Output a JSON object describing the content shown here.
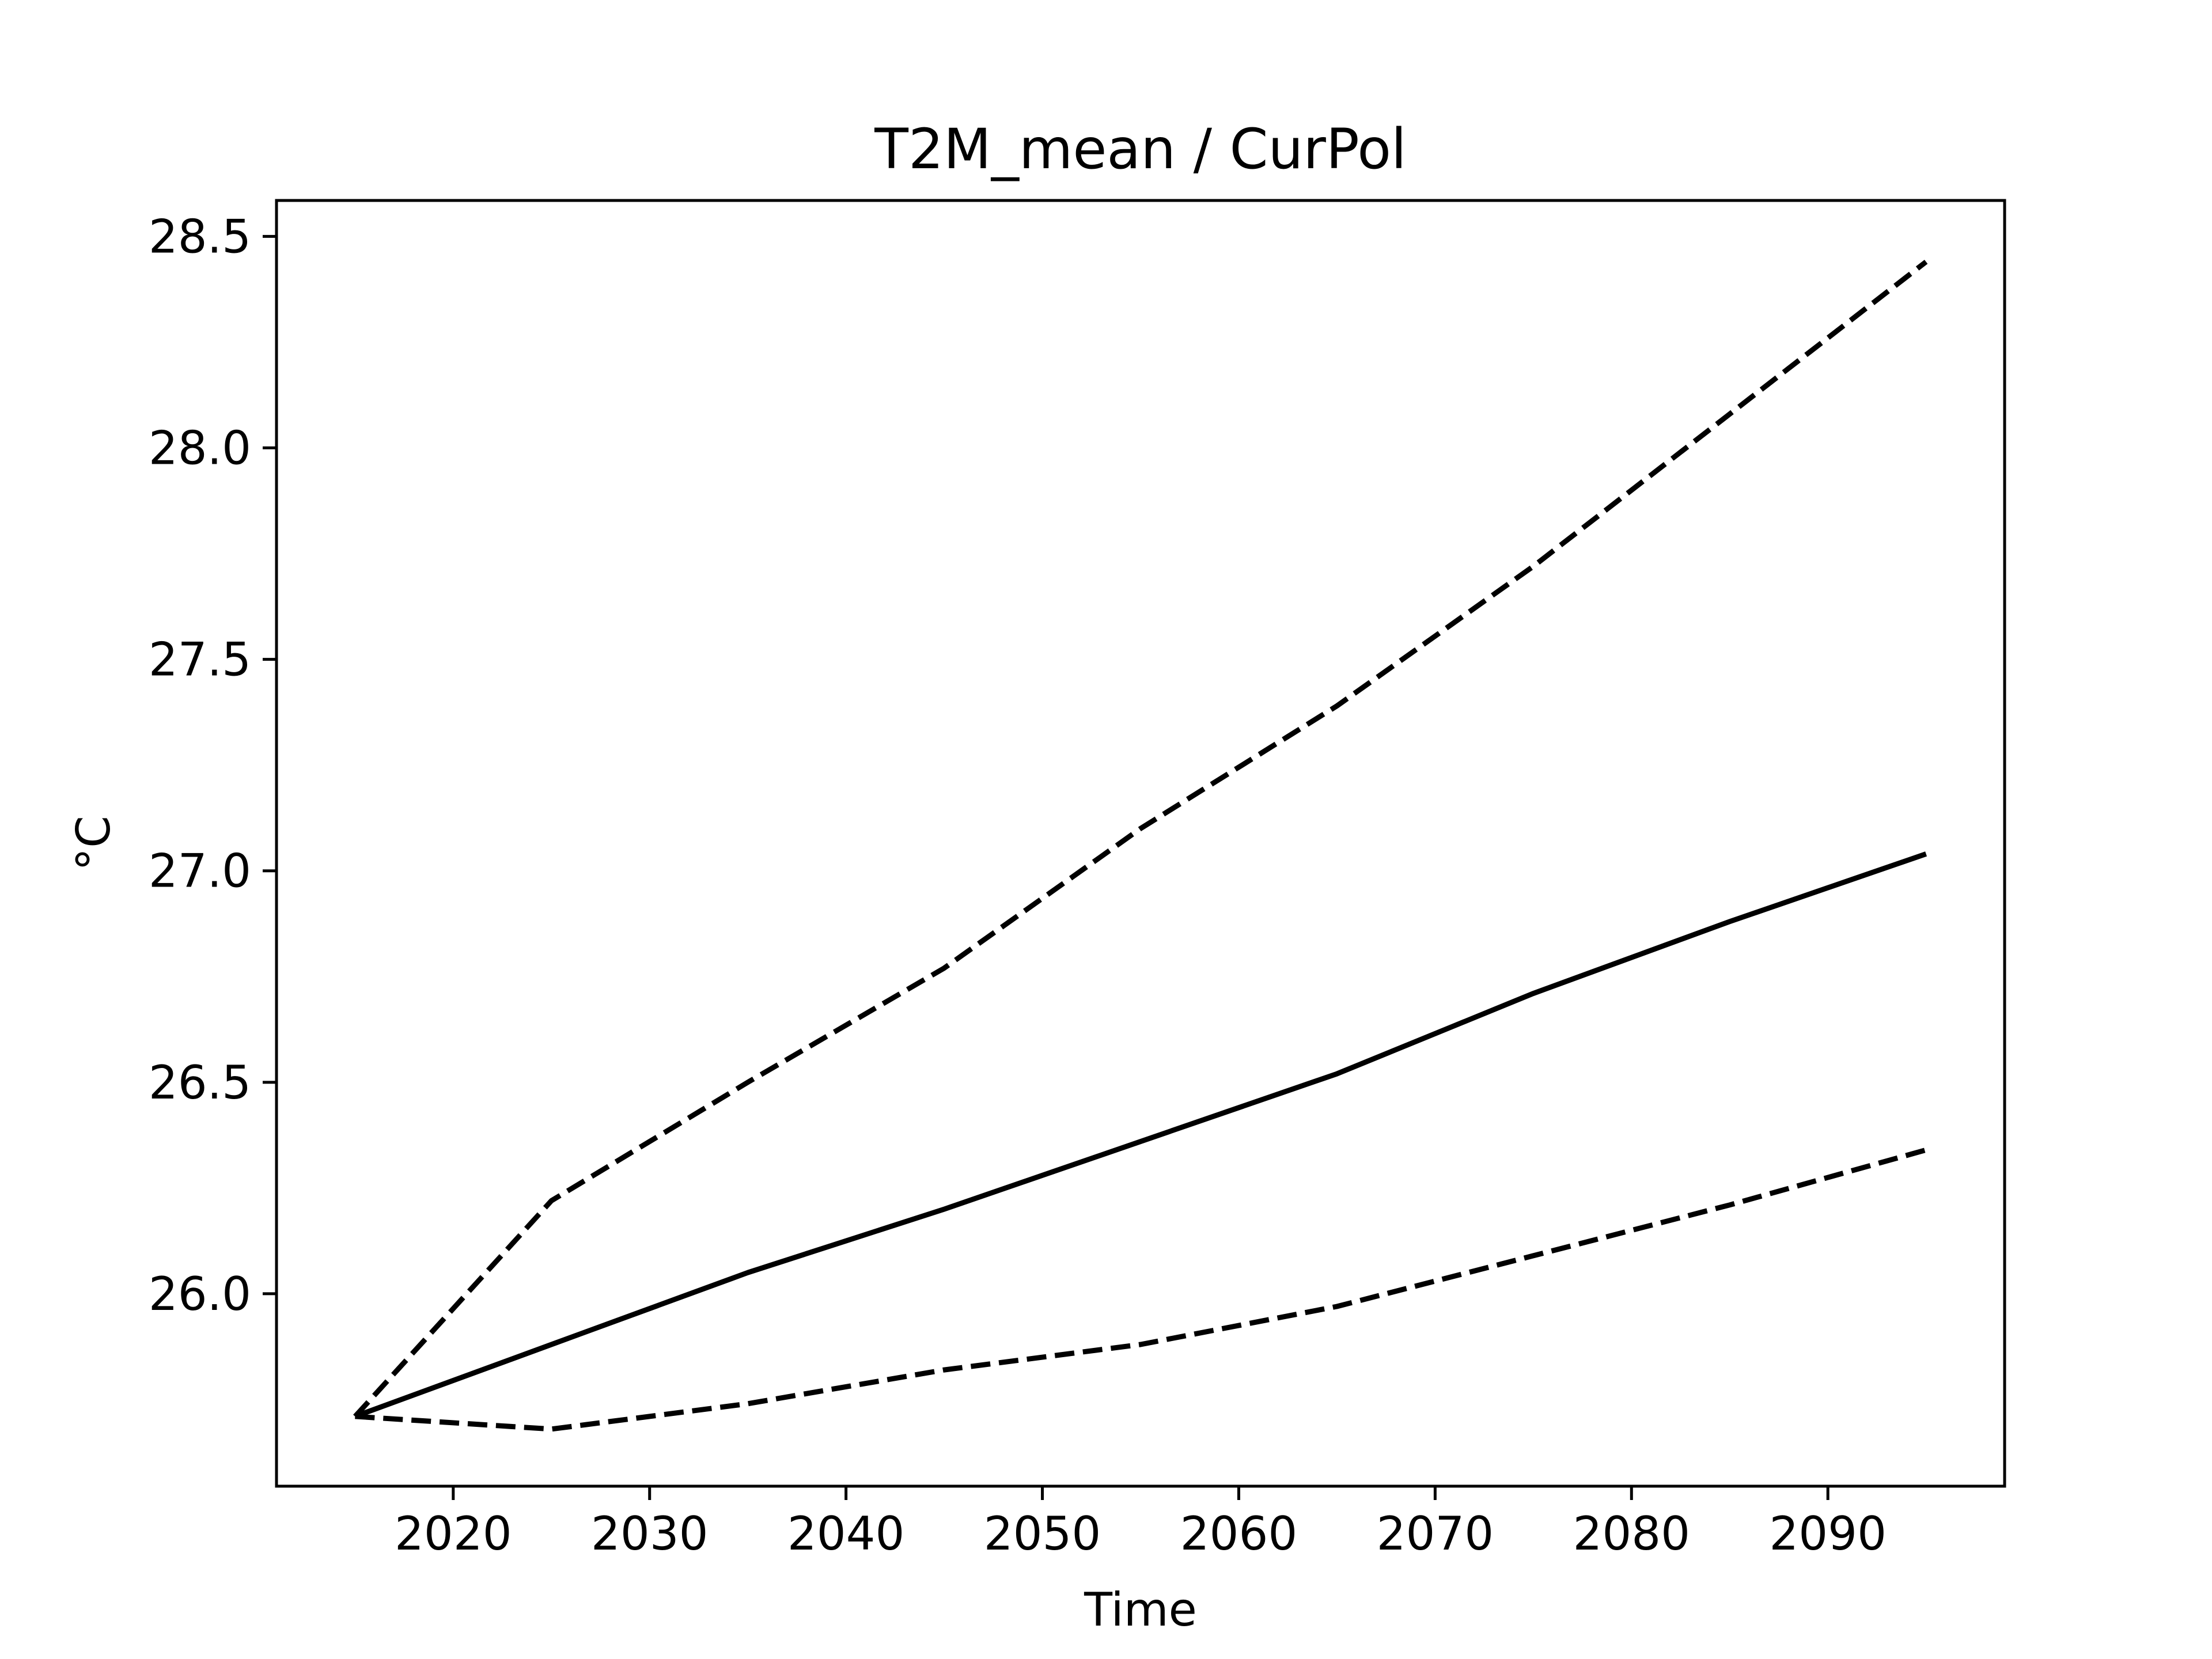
{
  "chart_data": {
    "type": "line",
    "title": "T2M_mean / CurPol",
    "xlabel": "Time",
    "ylabel": "°C",
    "xlim": [
      2011,
      2099
    ],
    "ylim": [
      25.545,
      28.585
    ],
    "xticks": [
      2020,
      2030,
      2040,
      2050,
      2060,
      2070,
      2080,
      2090
    ],
    "xtick_labels": [
      "2020",
      "2030",
      "2040",
      "2050",
      "2060",
      "2070",
      "2080",
      "2090"
    ],
    "yticks": [
      26.0,
      26.5,
      27.0,
      27.5,
      28.0,
      28.5
    ],
    "ytick_labels": [
      "26.0",
      "26.5",
      "27.0",
      "27.5",
      "28.0",
      "28.5"
    ],
    "grid": false,
    "legend": "none",
    "color": "#000000",
    "x": [
      2015,
      2025,
      2035,
      2045,
      2055,
      2065,
      2075,
      2085,
      2095
    ],
    "series": [
      {
        "style": "dashed",
        "values": [
          25.71,
          26.22,
          26.5,
          26.77,
          27.1,
          27.39,
          27.72,
          28.08,
          28.44
        ]
      },
      {
        "style": "solid",
        "values": [
          25.71,
          25.88,
          26.05,
          26.2,
          26.36,
          26.52,
          26.71,
          26.88,
          27.04
        ]
      },
      {
        "style": "dashed",
        "values": [
          25.71,
          25.68,
          25.74,
          25.82,
          25.88,
          25.97,
          26.09,
          26.21,
          26.34
        ]
      }
    ]
  }
}
